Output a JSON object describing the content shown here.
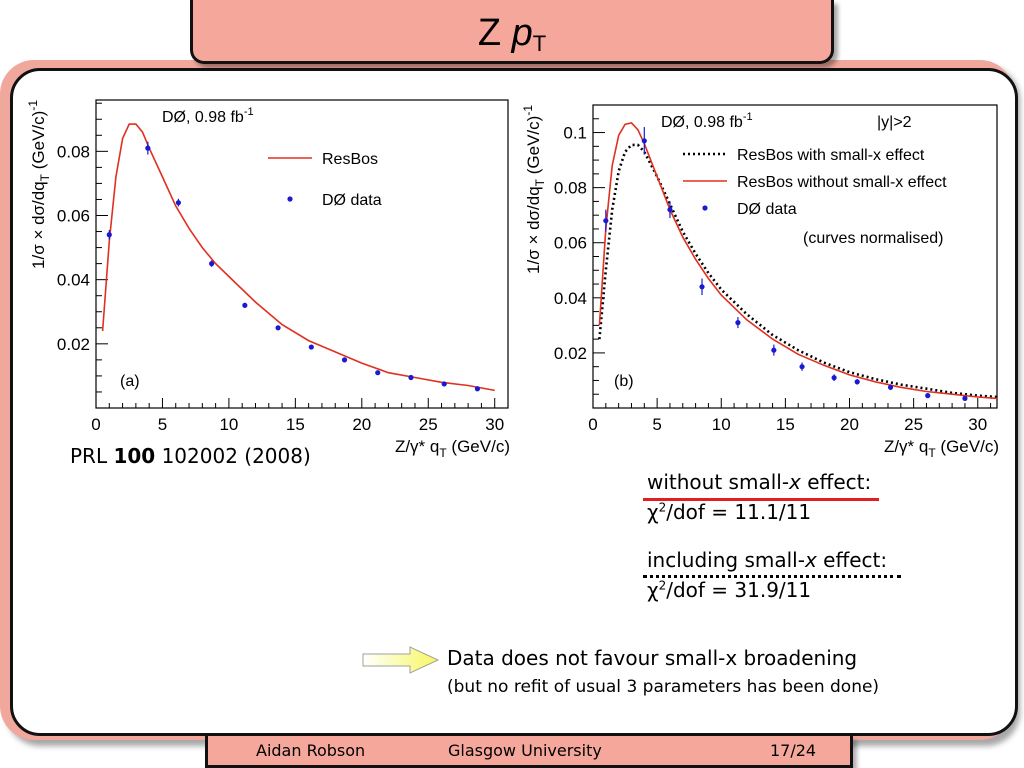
{
  "slide": {
    "title_main": "Z ",
    "title_italic": "p",
    "title_sub": "T"
  },
  "reference": {
    "prefix": "PRL ",
    "volume": "100",
    "rest": " 102002 (2008)"
  },
  "stats": {
    "without_label_a": "without small-",
    "without_label_x": "x",
    "without_label_b": " effect:",
    "without_chi": "χ",
    "without_sup": "2",
    "without_value": "/dof = 11.1/11",
    "including_label_a": "including small-",
    "including_label_x": "x",
    "including_label_b": " effect:",
    "including_chi": "χ",
    "including_sup": "2",
    "including_value": "/dof = 31.9/11"
  },
  "conclusion": {
    "line1": "Data does not favour small-x broadening",
    "line2": "(but no refit of usual 3 parameters has been done)"
  },
  "footer": {
    "author": "Aidan Robson",
    "institution": "Glasgow University",
    "page": "17/24"
  },
  "colors": {
    "frame": "#f0a79c",
    "resbos": "#e03020",
    "data": "#1a1ad0",
    "arrow_fill": "#f7f780"
  },
  "chart_data": [
    {
      "type": "scatter",
      "panel_label": "(a)",
      "title": "DØ, 0.98 fb",
      "title_sup": "-1",
      "xlabel": "Z/γ* q",
      "xlabel_sub": "T",
      "xlabel_unit": " (GeV/c)",
      "ylabel": "1/σ × dσ/dq",
      "ylabel_sub": "T",
      "ylabel_unit": " (GeV/c)",
      "ylabel_sup": "-1",
      "xlim": [
        0,
        31
      ],
      "ylim": [
        0.0,
        0.096
      ],
      "xticks": [
        0,
        5,
        10,
        15,
        20,
        25,
        30
      ],
      "yticks": [
        0.02,
        0.04,
        0.06,
        0.08
      ],
      "ytick_labels": [
        "0.02",
        "0.04",
        "0.06",
        "0.08"
      ],
      "legend_position": "top-right",
      "series": [
        {
          "name": "ResBos",
          "kind": "line",
          "style": "solid",
          "color": "#e03020",
          "x": [
            0.5,
            1,
            1.5,
            2,
            2.5,
            3,
            3.5,
            4,
            5,
            6,
            7,
            8,
            9,
            10,
            12,
            14,
            16,
            18,
            20,
            22,
            24,
            26,
            28,
            30
          ],
          "y": [
            0.024,
            0.052,
            0.072,
            0.084,
            0.0885,
            0.0885,
            0.086,
            0.081,
            0.072,
            0.063,
            0.056,
            0.05,
            0.045,
            0.041,
            0.033,
            0.026,
            0.021,
            0.0175,
            0.014,
            0.011,
            0.0095,
            0.008,
            0.007,
            0.0055
          ]
        },
        {
          "name": "DØ data",
          "kind": "points",
          "color": "#1a1ad0",
          "x": [
            1.0,
            3.9,
            6.2,
            8.7,
            11.2,
            13.7,
            16.2,
            18.7,
            21.2,
            23.7,
            26.2,
            28.7
          ],
          "y": [
            0.054,
            0.081,
            0.064,
            0.045,
            0.032,
            0.025,
            0.019,
            0.015,
            0.011,
            0.0095,
            0.0075,
            0.006
          ],
          "yerr": [
            0.0015,
            0.002,
            0.0012,
            0.001,
            0.0008,
            0.0006,
            0.0005,
            0.0004,
            0.0003,
            0.0003,
            0.0003,
            0.0003
          ]
        }
      ]
    },
    {
      "type": "scatter",
      "panel_label": "(b)",
      "title": "DØ, 0.98 fb",
      "title_sup": "-1",
      "annotation": "|y|>2",
      "annotation2": "(curves normalised)",
      "xlabel": "Z/γ* q",
      "xlabel_sub": "T",
      "xlabel_unit": " (GeV/c)",
      "ylabel": "1/σ × dσ/dq",
      "ylabel_sub": "T",
      "ylabel_unit": " (GeV/c)",
      "ylabel_sup": "-1",
      "xlim": [
        0,
        31.5
      ],
      "ylim": [
        0.0,
        0.11
      ],
      "xticks": [
        0,
        5,
        10,
        15,
        20,
        25,
        30
      ],
      "yticks": [
        0.02,
        0.04,
        0.06,
        0.08,
        0.1
      ],
      "ytick_labels": [
        "0.02",
        "0.04",
        "0.06",
        "0.08",
        "0.1"
      ],
      "legend_position": "top-right",
      "series": [
        {
          "name": "ResBos with small-x effect",
          "kind": "line",
          "style": "dotted",
          "color": "#000000",
          "x": [
            0.5,
            1,
            1.5,
            2,
            2.5,
            3,
            3.5,
            4,
            5,
            6,
            7,
            8,
            9,
            10,
            12,
            14,
            16,
            18,
            20,
            22,
            24,
            26,
            28,
            30,
            31.5
          ],
          "y": [
            0.025,
            0.05,
            0.072,
            0.086,
            0.093,
            0.0955,
            0.0955,
            0.093,
            0.084,
            0.074,
            0.064,
            0.056,
            0.049,
            0.043,
            0.034,
            0.0265,
            0.021,
            0.0165,
            0.013,
            0.0105,
            0.0085,
            0.007,
            0.0055,
            0.0045,
            0.004
          ]
        },
        {
          "name": "ResBos without small-x effect",
          "kind": "line",
          "style": "solid",
          "color": "#e03020",
          "x": [
            0.5,
            1,
            1.5,
            2,
            2.5,
            3,
            3.5,
            4,
            5,
            6,
            7,
            8,
            9,
            10,
            12,
            14,
            16,
            18,
            20,
            22,
            24,
            26,
            28,
            30,
            31.5
          ],
          "y": [
            0.03,
            0.065,
            0.088,
            0.099,
            0.103,
            0.1035,
            0.101,
            0.096,
            0.084,
            0.072,
            0.062,
            0.054,
            0.047,
            0.041,
            0.032,
            0.025,
            0.0195,
            0.0155,
            0.012,
            0.0095,
            0.0075,
            0.006,
            0.005,
            0.004,
            0.0035
          ]
        },
        {
          "name": "DØ data",
          "kind": "points",
          "color": "#1a1ad0",
          "x": [
            1.0,
            4.0,
            6.0,
            8.5,
            11.3,
            14.1,
            16.3,
            18.8,
            20.6,
            23.2,
            26.1,
            29.0
          ],
          "y": [
            0.068,
            0.097,
            0.072,
            0.044,
            0.031,
            0.021,
            0.015,
            0.011,
            0.0095,
            0.0075,
            0.0045,
            0.0035
          ],
          "yerr": [
            0.004,
            0.005,
            0.003,
            0.003,
            0.002,
            0.002,
            0.0015,
            0.0012,
            0.001,
            0.001,
            0.0008,
            0.0008
          ]
        }
      ]
    }
  ]
}
